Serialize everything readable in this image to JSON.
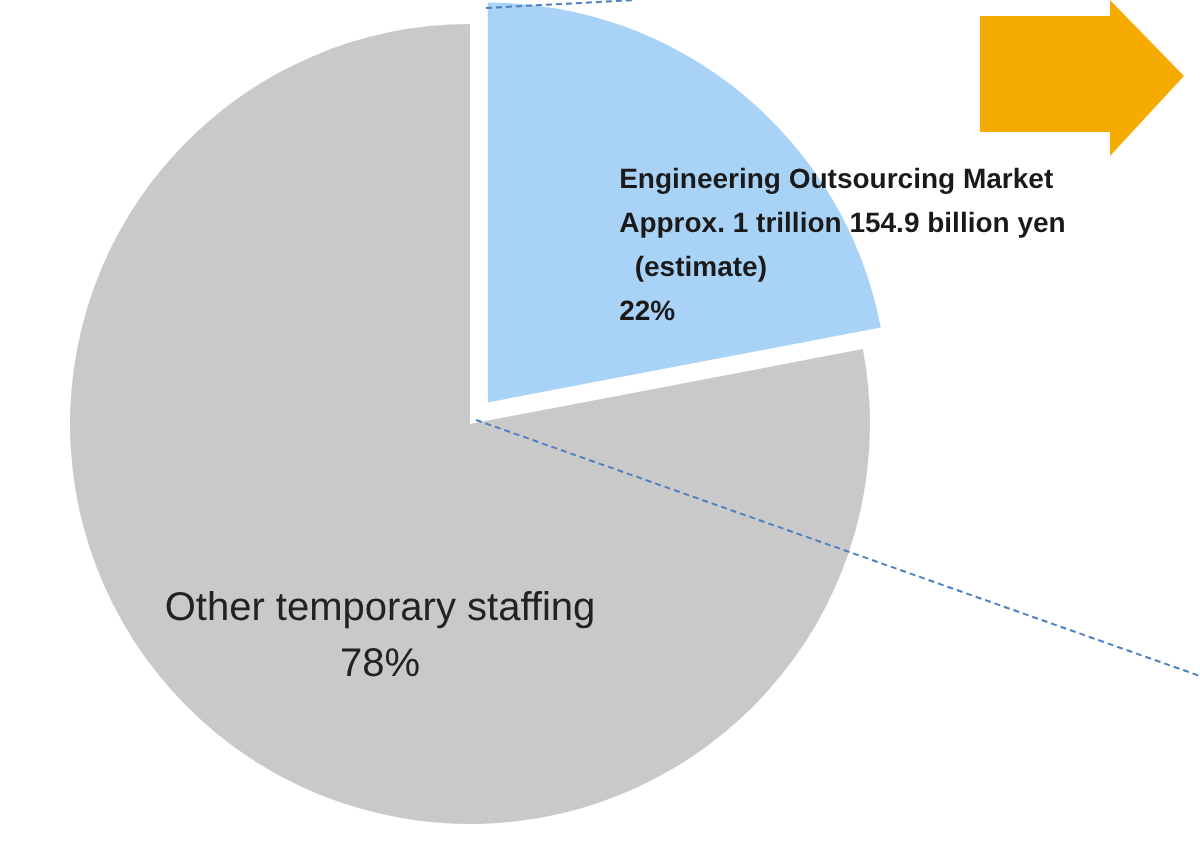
{
  "chart_data": {
    "type": "pie",
    "categories": [
      "Engineering Outsourcing Market\nApprox. 1 trillion 154.9 billion yen\n  (estimate)",
      "Other temporary staffing"
    ],
    "values": [
      22,
      78
    ],
    "colors": [
      "#a8d3f7",
      "#c9c9c9"
    ],
    "value_labels": [
      "22%",
      "78%"
    ],
    "legend": false
  }
}
